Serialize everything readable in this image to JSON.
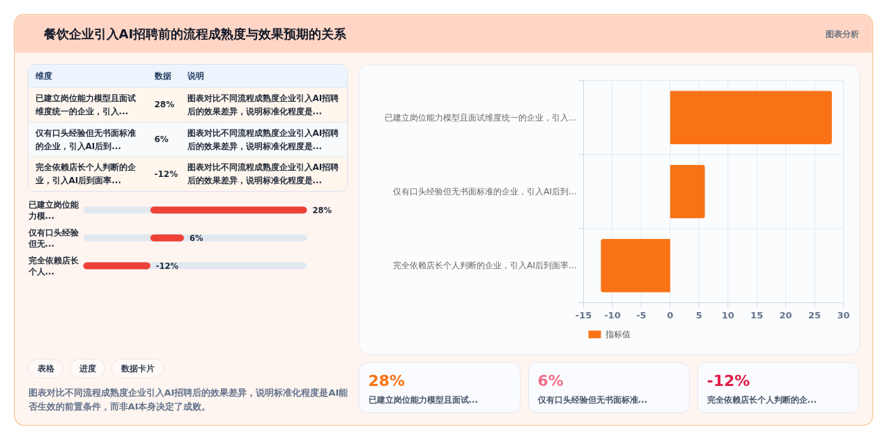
{
  "chart_data": [
    {
      "type": "other",
      "title": "餐饮企业引入AI招聘前的流程成熟度与效果预期的关系",
      "annotations": [
        "图表分析"
      ]
    },
    {
      "type": "other",
      "categories": [
        "已建立岗位能力模型且面试维度统一的企业，引入...",
        "仅有口头经验但无书面标准的企业，引入AI后到...",
        "完全依赖店长个人判断的企业，引入AI后到面率..."
      ],
      "value_labels": [
        "28%",
        "6%",
        "-12%"
      ],
      "annotations": [
        "维度",
        "数据",
        "说明",
        "图表对比不同流程成熟度企业引入AI招聘后的效果差异，说明标准化程度是...",
        "图表对比不同流程成熟度企业引入AI招聘后的效果差异，说明标准化程度是...",
        "图表对比不同流程成熟度企业引入AI招聘后的效果差异，说明标准化程度是..."
      ]
    },
    {
      "type": "bar",
      "orientation": "horizontal",
      "categories": [
        "已建立岗位能力模...",
        "仅有口头经验但无...",
        "完全依赖店长个人..."
      ],
      "values": [
        28,
        6,
        -12
      ],
      "value_labels": [
        "28%",
        "6%",
        "-12%"
      ],
      "color": "#ee4138"
    },
    {
      "type": "other",
      "annotations": [
        "表格",
        "进度",
        "数据卡片",
        "图表对比不同流程成熟度企业引入AI招聘后的效果差异，说明标准化程度是AI能否生效的前置条件，而非AI本身决定了成败。"
      ]
    },
    {
      "type": "bar",
      "orientation": "horizontal",
      "categories": [
        "已建立岗位能力模型且面试维度统一的企业，引入...",
        "仅有口头经验但无书面标准的企业，引入AI后到...",
        "完全依赖店长个人判断的企业，引入AI后到面率..."
      ],
      "series": [
        {
          "name": "指标值",
          "color": "#f97316",
          "values": [
            28,
            6,
            -12
          ]
        }
      ],
      "xlim": [
        -15,
        30
      ],
      "xticks": [
        -15,
        -10,
        -5,
        0,
        5,
        10,
        15,
        20,
        25,
        30
      ],
      "grid": true,
      "legend": "bottom"
    },
    {
      "type": "other",
      "categories": [
        "已建立岗位能力模型且面试...",
        "仅有口头经验但无书面标准...",
        "完全依赖店长个人判断的企..."
      ],
      "value_labels": [
        "28%",
        "6%",
        "-12%"
      ]
    }
  ]
}
